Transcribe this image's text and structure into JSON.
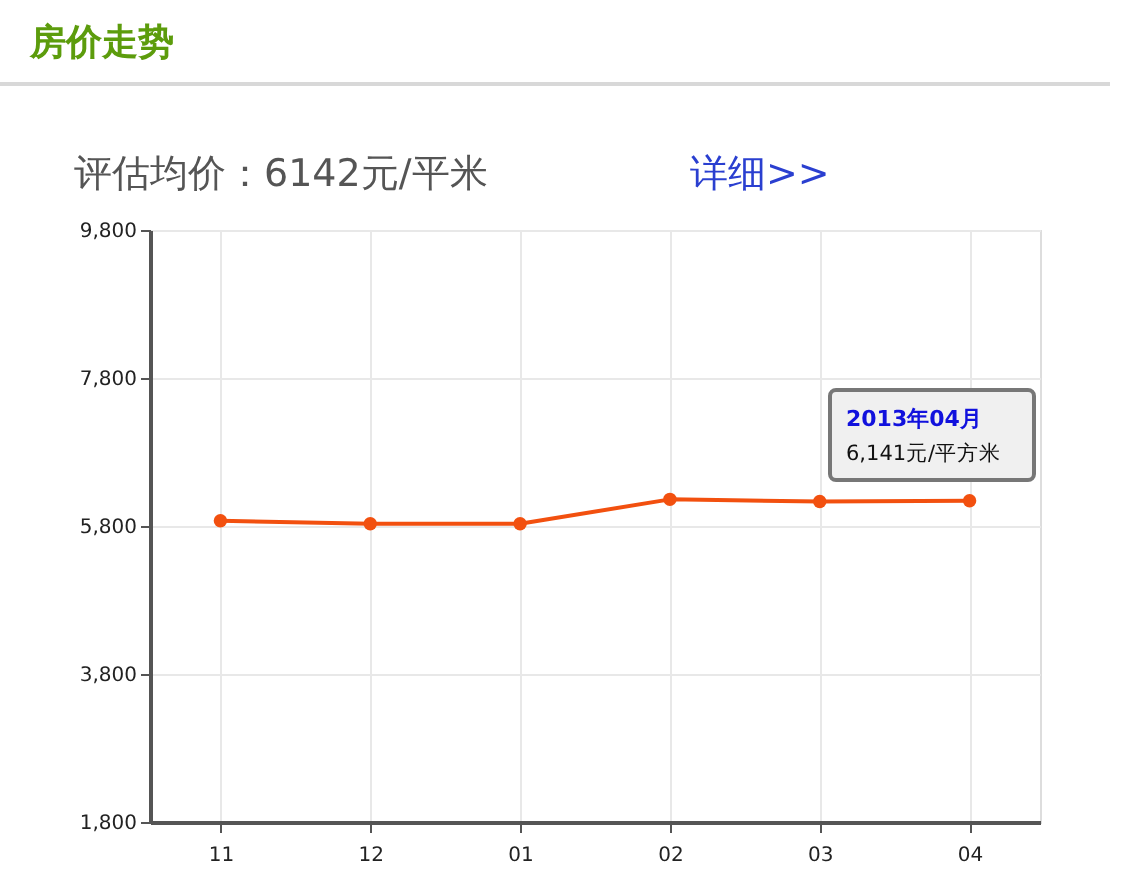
{
  "chart_data": {
    "type": "line",
    "title": "房价走势",
    "subtitle": "评估均价：6142元/平米",
    "categories": [
      "11",
      "12",
      "01",
      "02",
      "03",
      "04"
    ],
    "series": [
      {
        "color": "#f2500f",
        "values": [
          5870,
          5830,
          5830,
          6160,
          6130,
          6141
        ]
      }
    ],
    "ylim": [
      1800,
      9800
    ],
    "yticks": [
      {
        "value": 1800,
        "label": "1,800"
      },
      {
        "value": 3800,
        "label": "3,800"
      },
      {
        "value": 5800,
        "label": "5,800"
      },
      {
        "value": 7800,
        "label": "7,800"
      },
      {
        "value": 9800,
        "label": "9,800"
      }
    ],
    "grid": true,
    "marker": "circle",
    "annotations": [
      "2013年04月",
      "6,141元/平方米",
      "详细>>"
    ]
  }
}
